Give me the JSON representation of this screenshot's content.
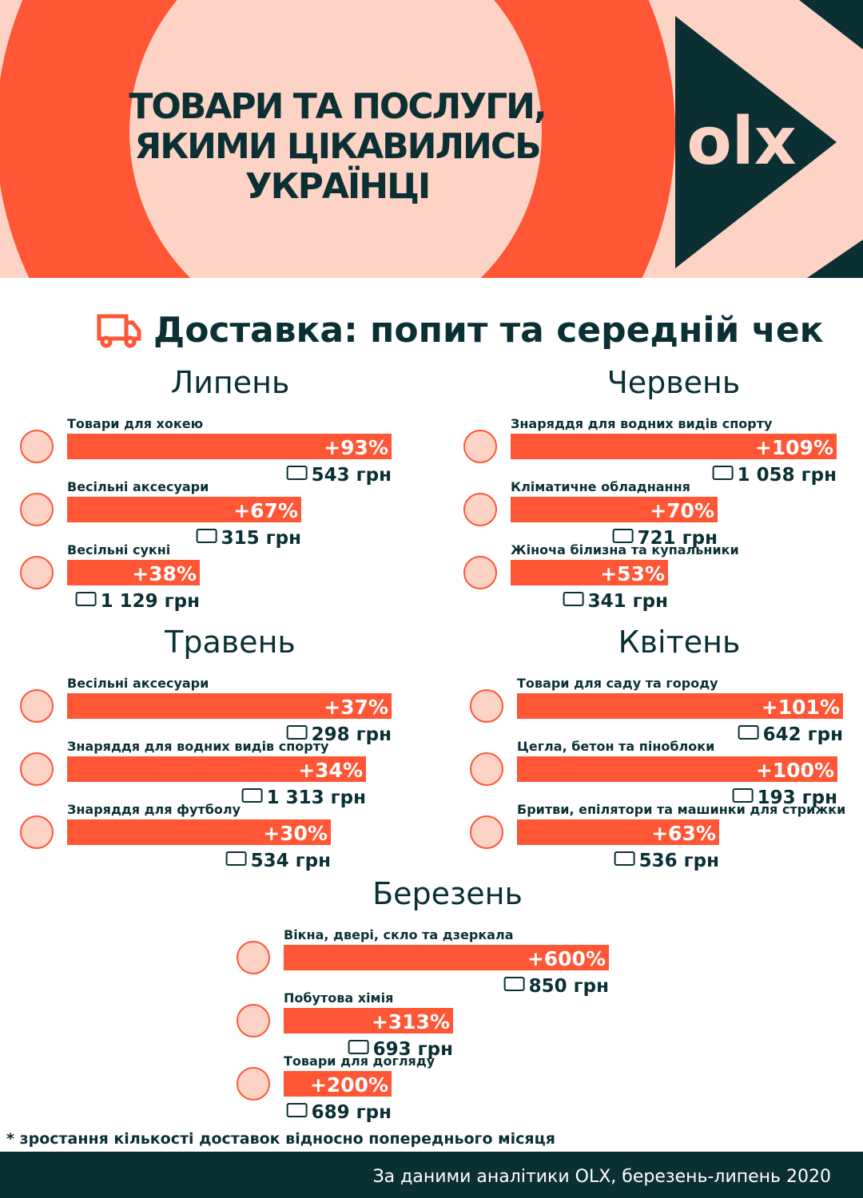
{
  "header": {
    "title_lines": [
      "ТОВАРИ ТА ПОСЛУГИ,",
      "ЯКИМИ ЦІКАВИЛИСЬ",
      "УКРАЇНЦІ"
    ],
    "logo": "olx"
  },
  "section_title": "Доставка: попит та середній чек",
  "groups": [
    {
      "title": "Липень",
      "items": [
        {
          "label": "Товари для хокею",
          "growth": "+93%",
          "price": "543 грн"
        },
        {
          "label": "Весільні аксесуари",
          "growth": "+67%",
          "price": "315 грн"
        },
        {
          "label": "Весільні сукні",
          "growth": "+38%",
          "price": "1 129 грн"
        }
      ]
    },
    {
      "title": "Червень",
      "items": [
        {
          "label": "Знаряддя для водних видів спорту",
          "growth": "+109%",
          "price": "1 058 грн"
        },
        {
          "label": "Кліматичне обладнання",
          "growth": "+70%",
          "price": "721 грн"
        },
        {
          "label": "Жіноча білизна та купальники",
          "growth": "+53%",
          "price": "341 грн"
        }
      ]
    },
    {
      "title": "Травень",
      "items": [
        {
          "label": "Весільні аксесуари",
          "growth": "+37%",
          "price": "298 грн"
        },
        {
          "label": "Знаряддя для водних видів спорту",
          "growth": "+34%",
          "price": "1 313 грн"
        },
        {
          "label": "Знаряддя для футболу",
          "growth": "+30%",
          "price": "534 грн"
        }
      ]
    },
    {
      "title": "Квітень",
      "items": [
        {
          "label": "Товари для саду та городу",
          "growth": "+101%",
          "price": "642 грн"
        },
        {
          "label": "Цегла, бетон та піноблоки",
          "growth": "+100%",
          "price": "193 грн"
        },
        {
          "label": "Бритви, епілятори та машинки для стрижки",
          "growth": "+63%",
          "price": "536 грн"
        }
      ]
    },
    {
      "title": "Березень",
      "items": [
        {
          "label": "Вікна, двері, скло та дзеркала",
          "growth": "+600%",
          "price": "850 грн"
        },
        {
          "label": "Побутова хімія",
          "growth": "+313%",
          "price": "693 грн"
        },
        {
          "label": "Товари для догляду",
          "growth": "+200%",
          "price": "689 грн"
        }
      ]
    }
  ],
  "footnote": "* зростання кількості доставок  відносно попереднього місяця",
  "footer": "За даними аналітики OLX, березень-липень 2020"
}
